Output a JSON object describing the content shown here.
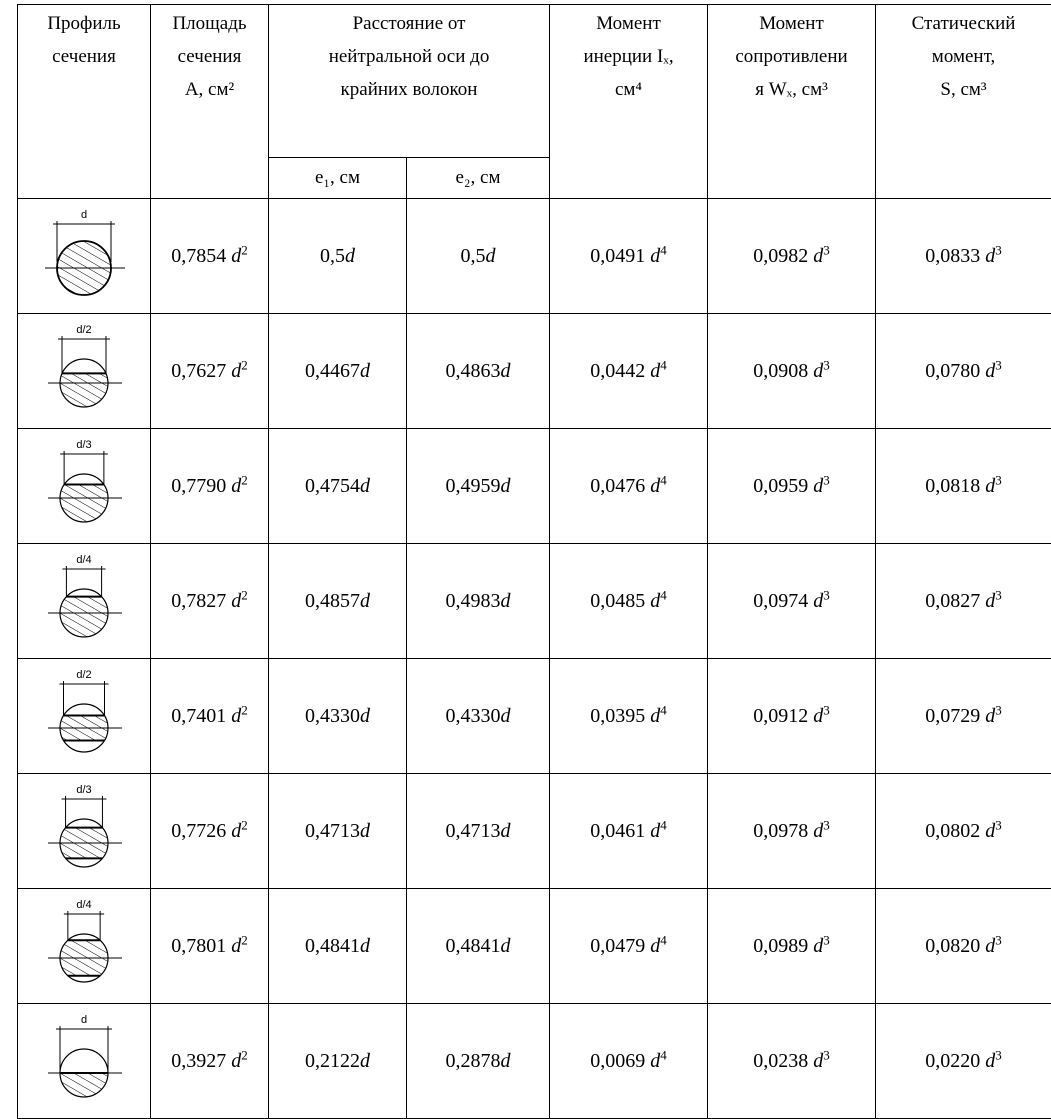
{
  "headers": {
    "profile": [
      "Профиль",
      "сечения"
    ],
    "area": [
      "Площадь",
      "сечения",
      "A, см²"
    ],
    "distance": [
      "Расстояние от",
      "нейтральной оси до",
      "крайних волокон"
    ],
    "e1": "e₁, см",
    "e2": "e₂, см",
    "inertia": [
      "Момент",
      "инерции Iₓ,",
      "см⁴"
    ],
    "resistance": [
      "Момент",
      "сопротивлени",
      "я Wₓ, см³"
    ],
    "static": [
      "Статический",
      "момент,",
      "S, см³"
    ]
  },
  "rows": [
    {
      "profile_label": "d",
      "area": "0,7854",
      "e1": "0,5",
      "e2": "0,5",
      "inertia": "0,0491",
      "resistance": "0,0982",
      "static": "0,0833"
    },
    {
      "profile_label": "d/2",
      "area": "0,7627",
      "e1": "0,4467",
      "e2": "0,4863",
      "inertia": "0,0442",
      "resistance": "0,0908",
      "static": "0,0780"
    },
    {
      "profile_label": "d/3",
      "area": "0,7790",
      "e1": "0,4754",
      "e2": "0,4959",
      "inertia": "0,0476",
      "resistance": "0,0959",
      "static": "0,0818"
    },
    {
      "profile_label": "d/4",
      "area": "0,7827",
      "e1": "0,4857",
      "e2": "0,4983",
      "inertia": "0,0485",
      "resistance": "0,0974",
      "static": "0,0827"
    },
    {
      "profile_label": "d/2",
      "area": "0,7401",
      "e1": "0,4330",
      "e2": "0,4330",
      "inertia": "0,0395",
      "resistance": "0,0912",
      "static": "0,0729"
    },
    {
      "profile_label": "d/3",
      "area": "0,7726",
      "e1": "0,4713",
      "e2": "0,4713",
      "inertia": "0,0461",
      "resistance": "0,0978",
      "static": "0,0802"
    },
    {
      "profile_label": "d/4",
      "area": "0,7801",
      "e1": "0,4841",
      "e2": "0,4841",
      "inertia": "0,0479",
      "resistance": "0,0989",
      "static": "0,0820"
    },
    {
      "profile_label": "d",
      "area": "0,3927",
      "e1": "0,2122",
      "e2": "0,2878",
      "inertia": "0,0069",
      "resistance": "0,0238",
      "static": "0,0220"
    }
  ],
  "symbols": {
    "var": "d",
    "sq": "2",
    "cube": "3",
    "fourth": "4"
  }
}
